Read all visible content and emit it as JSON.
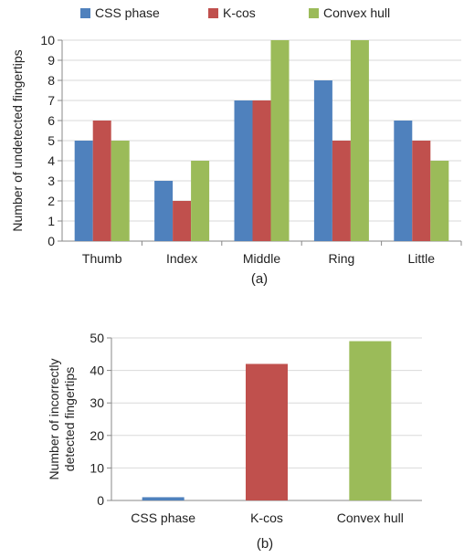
{
  "chart_data": [
    {
      "type": "bar",
      "caption": "(a)",
      "ylabel": "Number of undetected fingertips",
      "xlabel": "",
      "ylim": [
        0,
        10
      ],
      "yticks": [
        0,
        1,
        2,
        3,
        4,
        5,
        6,
        7,
        8,
        9,
        10
      ],
      "categories": [
        "Thumb",
        "Index",
        "Middle",
        "Ring",
        "Little"
      ],
      "series": [
        {
          "name": "CSS phase",
          "color": "#4f81bd",
          "values": [
            5,
            3,
            7,
            8,
            6
          ]
        },
        {
          "name": "K-cos",
          "color": "#c0504d",
          "values": [
            6,
            2,
            7,
            5,
            5
          ]
        },
        {
          "name": "Convex hull",
          "color": "#9bbb59",
          "values": [
            5,
            4,
            10,
            10,
            4
          ]
        }
      ],
      "legend": "top",
      "grid": true
    },
    {
      "type": "bar",
      "caption": "(b)",
      "ylabel": "Number of incorrectly detected fingertips",
      "ylabel_lines": [
        "Number of incorrectly",
        "detected fingertips"
      ],
      "xlabel": "",
      "ylim": [
        0,
        50
      ],
      "yticks": [
        0,
        10,
        20,
        30,
        40,
        50
      ],
      "categories": [
        "CSS phase",
        "K-cos",
        "Convex hull"
      ],
      "values": [
        1,
        42,
        49
      ],
      "colors": [
        "#4f81bd",
        "#c0504d",
        "#9bbb59"
      ],
      "grid": true
    }
  ]
}
